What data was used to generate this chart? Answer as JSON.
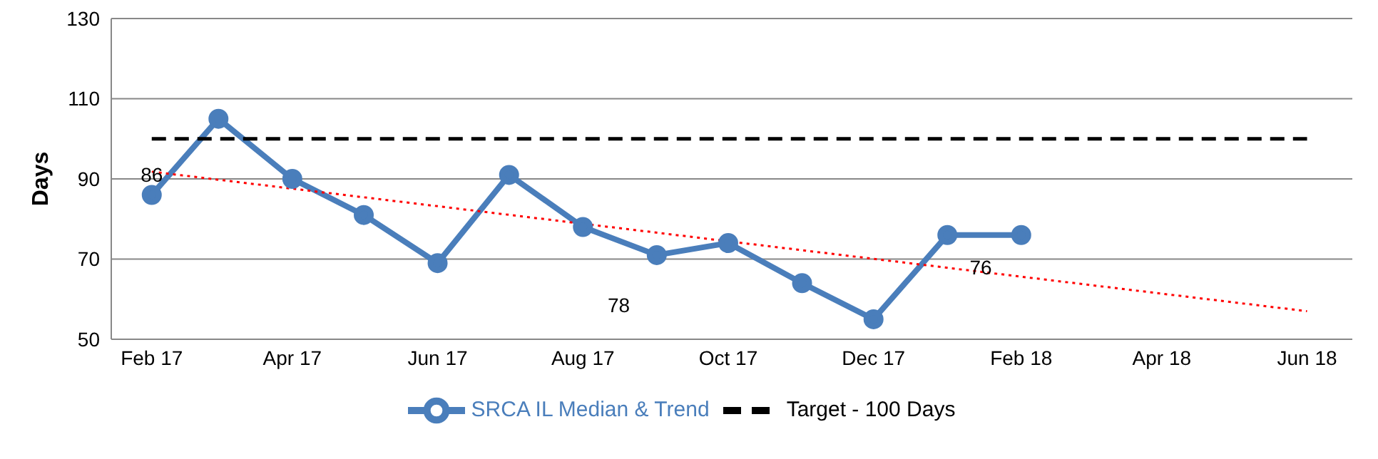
{
  "chart_data": {
    "type": "line",
    "ylabel": "Days",
    "x": [
      "2017-02",
      "2017-03",
      "2017-04",
      "2017-05",
      "2017-06",
      "2017-07",
      "2017-08",
      "2017-09",
      "2017-10",
      "2017-11",
      "2017-12",
      "2018-01",
      "2018-02"
    ],
    "series": [
      {
        "name": "SRCA IL Median & Trend",
        "color": "#4a7ebb",
        "values": [
          86,
          105,
          90,
          81,
          69,
          91,
          78,
          71,
          74,
          64,
          55,
          76,
          76
        ],
        "marker": "circle",
        "line_style": "solid"
      },
      {
        "name": "Target - 100 Days",
        "color": "#000000",
        "x": [
          "2017-02",
          "2018-06"
        ],
        "values": [
          100,
          100
        ],
        "marker": "none",
        "line_style": "dashed"
      },
      {
        "color": "#ff0000",
        "x": [
          "2017-02",
          "2018-06"
        ],
        "values": [
          91.8,
          57
        ],
        "marker": "none",
        "line_style": "dotted"
      }
    ],
    "annotations": [
      {
        "text": "86",
        "x": "2017-02",
        "y": 91
      },
      "78",
      {
        "text": "76",
        "x": "2018-01-15",
        "y": 68
      }
    ],
    "xlim": [
      "2017-01-15",
      "2018-06-20"
    ],
    "xticks": [
      {
        "value": "2017-02",
        "label": "Feb 17"
      },
      {
        "value": "2017-04",
        "label": "Apr 17"
      },
      {
        "value": "2017-06",
        "label": "Jun 17"
      },
      {
        "value": "2017-08",
        "label": "Aug 17"
      },
      {
        "value": "2017-10",
        "label": "Oct 17"
      },
      {
        "value": "2017-12",
        "label": "Dec 17"
      },
      {
        "value": "2018-02",
        "label": "Feb 18"
      },
      {
        "value": "2018-04",
        "label": "Apr 18"
      },
      {
        "value": "2018-06",
        "label": "Jun 18"
      }
    ],
    "ylim": [
      50,
      130
    ],
    "yticks": [
      50,
      70,
      90,
      110,
      130
    ],
    "grid": "y",
    "legend": "bottom"
  }
}
